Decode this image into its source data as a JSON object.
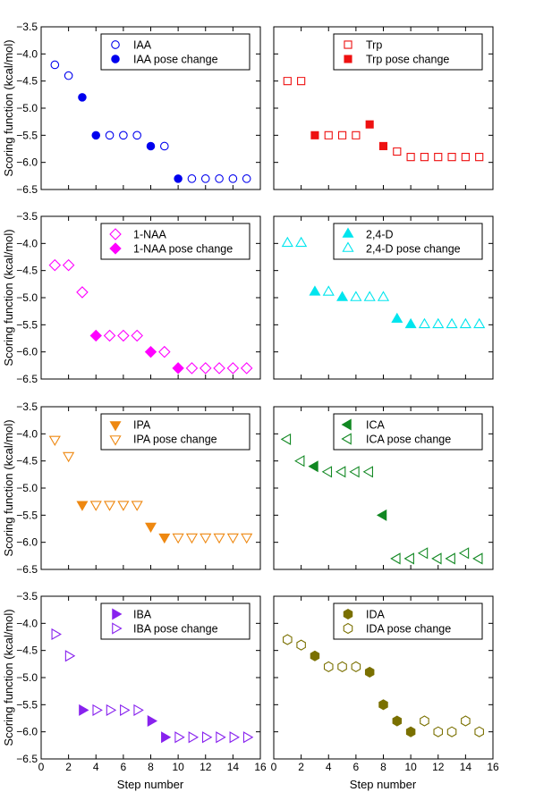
{
  "figure": {
    "xlabel": "Step number",
    "ylabel": "Scoring function (kcal/mol)",
    "xticks": [
      0,
      2,
      4,
      6,
      8,
      10,
      12,
      14,
      16
    ],
    "yticks": [
      -3.5,
      -4.0,
      -4.5,
      -5.0,
      -5.5,
      -6.0,
      -6.5
    ]
  },
  "chart_data": [
    {
      "type": "scatter",
      "xlim": [
        0,
        16
      ],
      "ylim": [
        -6.5,
        -3.5
      ],
      "legend": "top-right",
      "color": "#0000ee",
      "marker": "circle",
      "series": [
        {
          "name": "IAA",
          "filled": false,
          "points": [
            [
              1,
              -4.2
            ],
            [
              2,
              -4.4
            ],
            [
              5,
              -5.5
            ],
            [
              6,
              -5.5
            ],
            [
              7,
              -5.5
            ],
            [
              9,
              -5.7
            ],
            [
              11,
              -6.3
            ],
            [
              12,
              -6.3
            ],
            [
              13,
              -6.3
            ],
            [
              14,
              -6.3
            ],
            [
              15,
              -6.3
            ]
          ]
        },
        {
          "name": "IAA pose change",
          "filled": true,
          "points": [
            [
              3,
              -4.8
            ],
            [
              4,
              -5.5
            ],
            [
              8,
              -5.7
            ],
            [
              10,
              -6.3
            ]
          ]
        }
      ]
    },
    {
      "type": "scatter",
      "xlim": [
        0,
        16
      ],
      "ylim": [
        -6.5,
        -3.5
      ],
      "legend": "top-right",
      "color": "#ee1111",
      "marker": "square",
      "series": [
        {
          "name": "Trp",
          "filled": false,
          "points": [
            [
              1,
              -4.5
            ],
            [
              2,
              -4.5
            ],
            [
              4,
              -5.5
            ],
            [
              5,
              -5.5
            ],
            [
              6,
              -5.5
            ],
            [
              9,
              -5.8
            ],
            [
              10,
              -5.9
            ],
            [
              11,
              -5.9
            ],
            [
              12,
              -5.9
            ],
            [
              13,
              -5.9
            ],
            [
              14,
              -5.9
            ],
            [
              15,
              -5.9
            ]
          ]
        },
        {
          "name": "Trp pose change",
          "filled": true,
          "points": [
            [
              3,
              -5.5
            ],
            [
              7,
              -5.3
            ],
            [
              8,
              -5.7
            ]
          ]
        }
      ]
    },
    {
      "type": "scatter",
      "xlim": [
        0,
        16
      ],
      "ylim": [
        -6.5,
        -3.5
      ],
      "legend": "top-right",
      "color": "#ff00ff",
      "marker": "diamond",
      "series": [
        {
          "name": "1-NAA",
          "filled": false,
          "points": [
            [
              1,
              -4.4
            ],
            [
              2,
              -4.4
            ],
            [
              3,
              -4.9
            ],
            [
              5,
              -5.7
            ],
            [
              6,
              -5.7
            ],
            [
              7,
              -5.7
            ],
            [
              9,
              -6.0
            ],
            [
              11,
              -6.3
            ],
            [
              12,
              -6.3
            ],
            [
              13,
              -6.3
            ],
            [
              14,
              -6.3
            ],
            [
              15,
              -6.3
            ]
          ]
        },
        {
          "name": "1-NAA pose change",
          "filled": true,
          "points": [
            [
              4,
              -5.7
            ],
            [
              8,
              -6.0
            ],
            [
              10,
              -6.3
            ]
          ]
        }
      ]
    },
    {
      "type": "scatter",
      "xlim": [
        0,
        16
      ],
      "ylim": [
        -6.5,
        -3.5
      ],
      "legend": "top-right",
      "color": "#00e5ee",
      "marker": "triangle-up",
      "series": [
        {
          "name": "2,4-D",
          "filled": true,
          "points": [
            [
              3,
              -4.9
            ],
            [
              5,
              -5.0
            ],
            [
              9,
              -5.4
            ],
            [
              10,
              -5.5
            ]
          ]
        },
        {
          "name": "2,4-D pose change",
          "filled": false,
          "points": [
            [
              1,
              -4.0
            ],
            [
              2,
              -4.0
            ],
            [
              4,
              -4.9
            ],
            [
              6,
              -5.0
            ],
            [
              7,
              -5.0
            ],
            [
              8,
              -5.0
            ],
            [
              11,
              -5.5
            ],
            [
              12,
              -5.5
            ],
            [
              13,
              -5.5
            ],
            [
              14,
              -5.5
            ],
            [
              15,
              -5.5
            ]
          ]
        }
      ]
    },
    {
      "type": "scatter",
      "xlim": [
        0,
        16
      ],
      "ylim": [
        -6.5,
        -3.5
      ],
      "legend": "top-right",
      "color": "#ee8811",
      "marker": "triangle-down",
      "series": [
        {
          "name": "IPA",
          "filled": true,
          "points": [
            [
              3,
              -5.3
            ],
            [
              8,
              -5.7
            ],
            [
              9,
              -5.9
            ]
          ]
        },
        {
          "name": "IPA pose change",
          "filled": false,
          "points": [
            [
              1,
              -4.1
            ],
            [
              2,
              -4.4
            ],
            [
              4,
              -5.3
            ],
            [
              5,
              -5.3
            ],
            [
              6,
              -5.3
            ],
            [
              7,
              -5.3
            ],
            [
              10,
              -5.9
            ],
            [
              11,
              -5.9
            ],
            [
              12,
              -5.9
            ],
            [
              13,
              -5.9
            ],
            [
              14,
              -5.9
            ],
            [
              15,
              -5.9
            ]
          ]
        }
      ]
    },
    {
      "type": "scatter",
      "xlim": [
        0,
        16
      ],
      "ylim": [
        -6.5,
        -3.5
      ],
      "legend": "top-right",
      "color": "#118822",
      "marker": "triangle-left",
      "series": [
        {
          "name": "ICA",
          "filled": true,
          "points": [
            [
              3,
              -4.6
            ],
            [
              8,
              -5.5
            ]
          ]
        },
        {
          "name": "ICA pose change",
          "filled": false,
          "points": [
            [
              1,
              -4.1
            ],
            [
              2,
              -4.5
            ],
            [
              4,
              -4.7
            ],
            [
              5,
              -4.7
            ],
            [
              6,
              -4.7
            ],
            [
              7,
              -4.7
            ],
            [
              9,
              -6.3
            ],
            [
              10,
              -6.3
            ],
            [
              11,
              -6.2
            ],
            [
              12,
              -6.3
            ],
            [
              13,
              -6.3
            ],
            [
              14,
              -6.2
            ],
            [
              15,
              -6.3
            ]
          ]
        }
      ]
    },
    {
      "type": "scatter",
      "xlim": [
        0,
        16
      ],
      "ylim": [
        -6.5,
        -3.5
      ],
      "legend": "top-right",
      "color": "#8822ee",
      "marker": "triangle-right",
      "series": [
        {
          "name": "IBA",
          "filled": true,
          "points": [
            [
              3,
              -5.6
            ],
            [
              8,
              -5.8
            ],
            [
              9,
              -6.1
            ]
          ]
        },
        {
          "name": "IBA pose change",
          "filled": false,
          "points": [
            [
              1,
              -4.2
            ],
            [
              2,
              -4.6
            ],
            [
              4,
              -5.6
            ],
            [
              5,
              -5.6
            ],
            [
              6,
              -5.6
            ],
            [
              7,
              -5.6
            ],
            [
              10,
              -6.1
            ],
            [
              11,
              -6.1
            ],
            [
              12,
              -6.1
            ],
            [
              13,
              -6.1
            ],
            [
              14,
              -6.1
            ],
            [
              15,
              -6.1
            ]
          ]
        }
      ]
    },
    {
      "type": "scatter",
      "xlim": [
        0,
        16
      ],
      "ylim": [
        -6.5,
        -3.5
      ],
      "legend": "top-right",
      "color": "#7a7000",
      "marker": "hexagon",
      "series": [
        {
          "name": "IDA",
          "filled": true,
          "points": [
            [
              3,
              -4.6
            ],
            [
              7,
              -4.9
            ],
            [
              8,
              -5.5
            ],
            [
              9,
              -5.8
            ],
            [
              10,
              -6.0
            ]
          ]
        },
        {
          "name": "IDA pose change",
          "filled": false,
          "points": [
            [
              1,
              -4.3
            ],
            [
              2,
              -4.4
            ],
            [
              4,
              -4.8
            ],
            [
              5,
              -4.8
            ],
            [
              6,
              -4.8
            ],
            [
              11,
              -5.8
            ],
            [
              12,
              -6.0
            ],
            [
              13,
              -6.0
            ],
            [
              14,
              -5.8
            ],
            [
              15,
              -6.0
            ]
          ]
        }
      ]
    }
  ]
}
